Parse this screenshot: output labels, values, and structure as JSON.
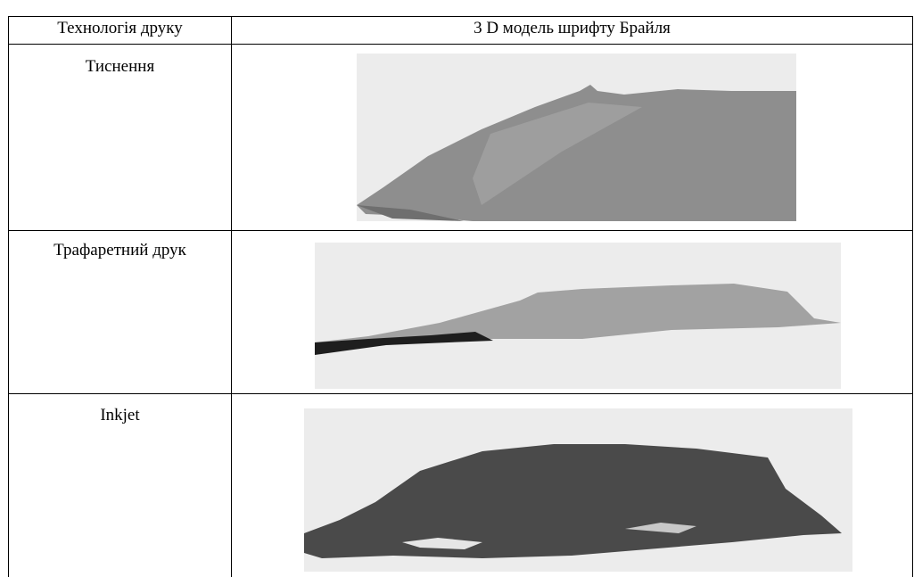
{
  "table": {
    "header": [
      "Технологія друку",
      "3 D модель шрифту Брайля"
    ],
    "rows": [
      [
        "Тиснення"
      ],
      [
        "Трафаретний друк"
      ],
      [
        "Inkjet"
      ]
    ]
  }
}
